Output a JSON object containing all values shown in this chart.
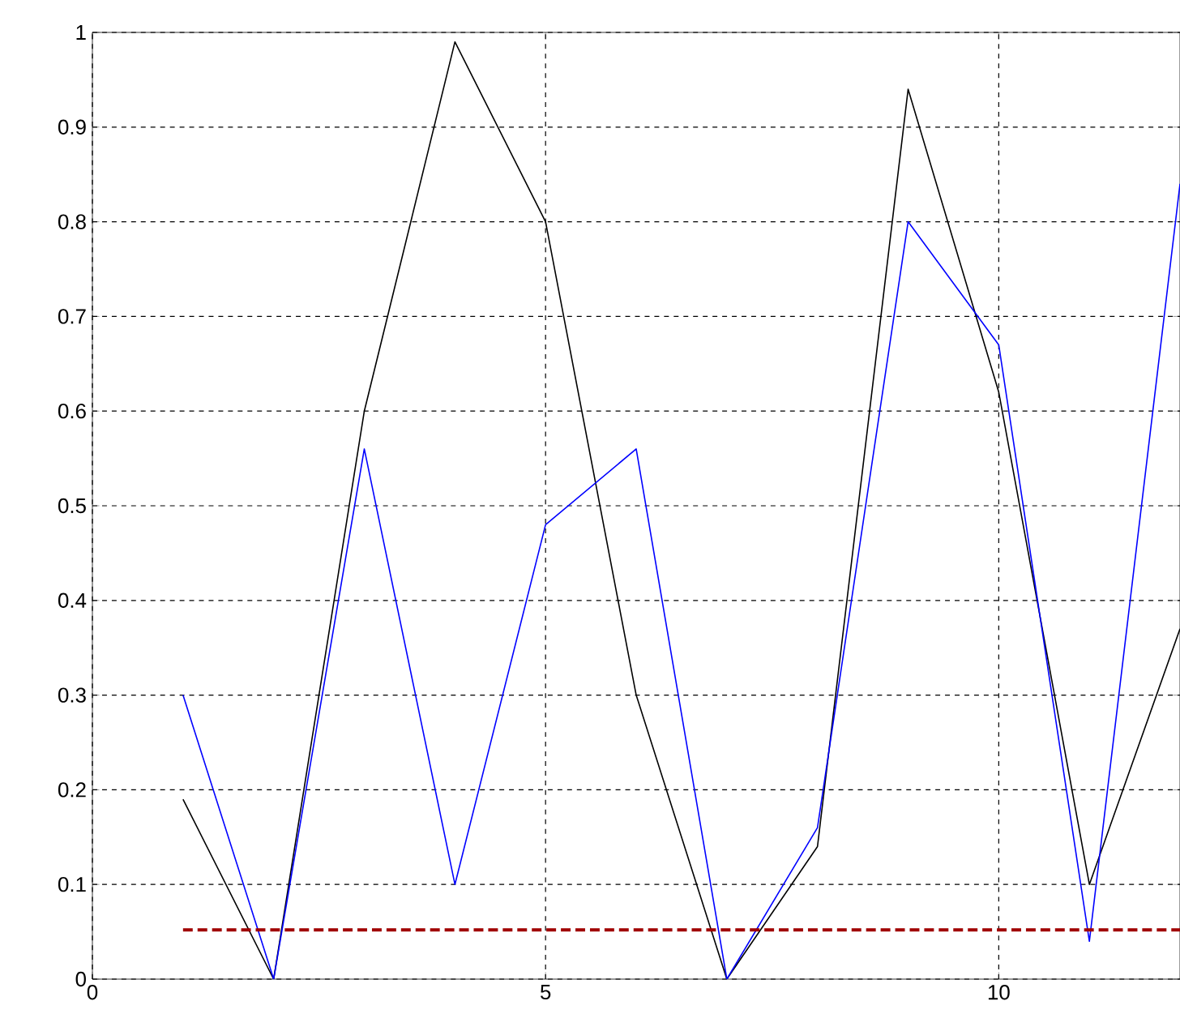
{
  "chart_data": {
    "type": "line",
    "x": [
      1,
      2,
      3,
      4,
      5,
      6,
      7,
      8,
      9,
      10,
      11,
      12
    ],
    "series": [
      {
        "color": "#000000",
        "values": [
          0.19,
          0,
          0.6,
          0.99,
          0.8,
          0.3,
          0,
          0.14,
          0.94,
          0.62,
          0.1,
          0.37
        ]
      },
      {
        "color": "#0000ff",
        "values": [
          0.3,
          0,
          0.56,
          0.1,
          0.48,
          0.56,
          0,
          0.16,
          0.8,
          0.67,
          0.04,
          0.84
        ]
      },
      {
        "color": "#a00000",
        "x": [
          1,
          12
        ],
        "values": [
          0.052,
          0.052
        ],
        "line_style": "dashed"
      }
    ],
    "xlim": [
      0,
      12
    ],
    "ylim": [
      0,
      1
    ],
    "xticks": [
      0,
      5,
      10
    ],
    "yticks": [
      0,
      0.1,
      0.2,
      0.3,
      0.4,
      0.5,
      0.6,
      0.7,
      0.8,
      0.9,
      1
    ],
    "grid": true
  }
}
